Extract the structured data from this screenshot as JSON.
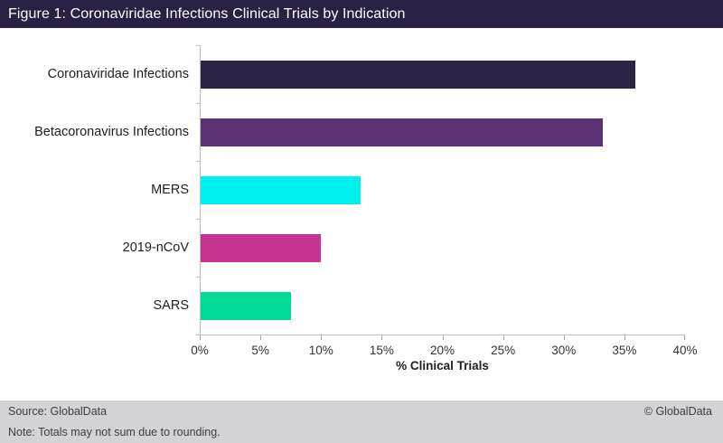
{
  "header": {
    "title": "Figure 1: Coronaviridae Infections Clinical Trials by Indication"
  },
  "chart_data": {
    "type": "bar",
    "orientation": "horizontal",
    "title": "Figure 1: Coronaviridae Infections Clinical Trials by Indication",
    "categories": [
      "Coronaviridae Infections",
      "Betacoronavirus Infections",
      "MERS",
      "2019-nCoV",
      "SARS"
    ],
    "values": [
      36,
      33.3,
      13.3,
      10,
      7.5
    ],
    "unit": "%",
    "bar_colors": [
      "#2d2445",
      "#5b3375",
      "#00efef",
      "#c5348f",
      "#00db97"
    ],
    "xlabel": "% Clinical Trials",
    "ylabel": "",
    "xlim": [
      0,
      40
    ],
    "xtick_labels": [
      "0%",
      "5%",
      "10%",
      "15%",
      "20%",
      "25%",
      "30%",
      "35%",
      "40%"
    ],
    "grid": false,
    "legend": "none",
    "axis_color": "#bfbfbf"
  },
  "footer": {
    "source": "Source: GlobalData",
    "copyright": "© GlobalData",
    "note": "Note: Totals may not sum due to rounding."
  },
  "colors": {
    "title_bar_bg": "#282143",
    "title_text": "#ffffff",
    "footer_bg": "#d3d3d7",
    "chart_bg": "#ffffff"
  }
}
